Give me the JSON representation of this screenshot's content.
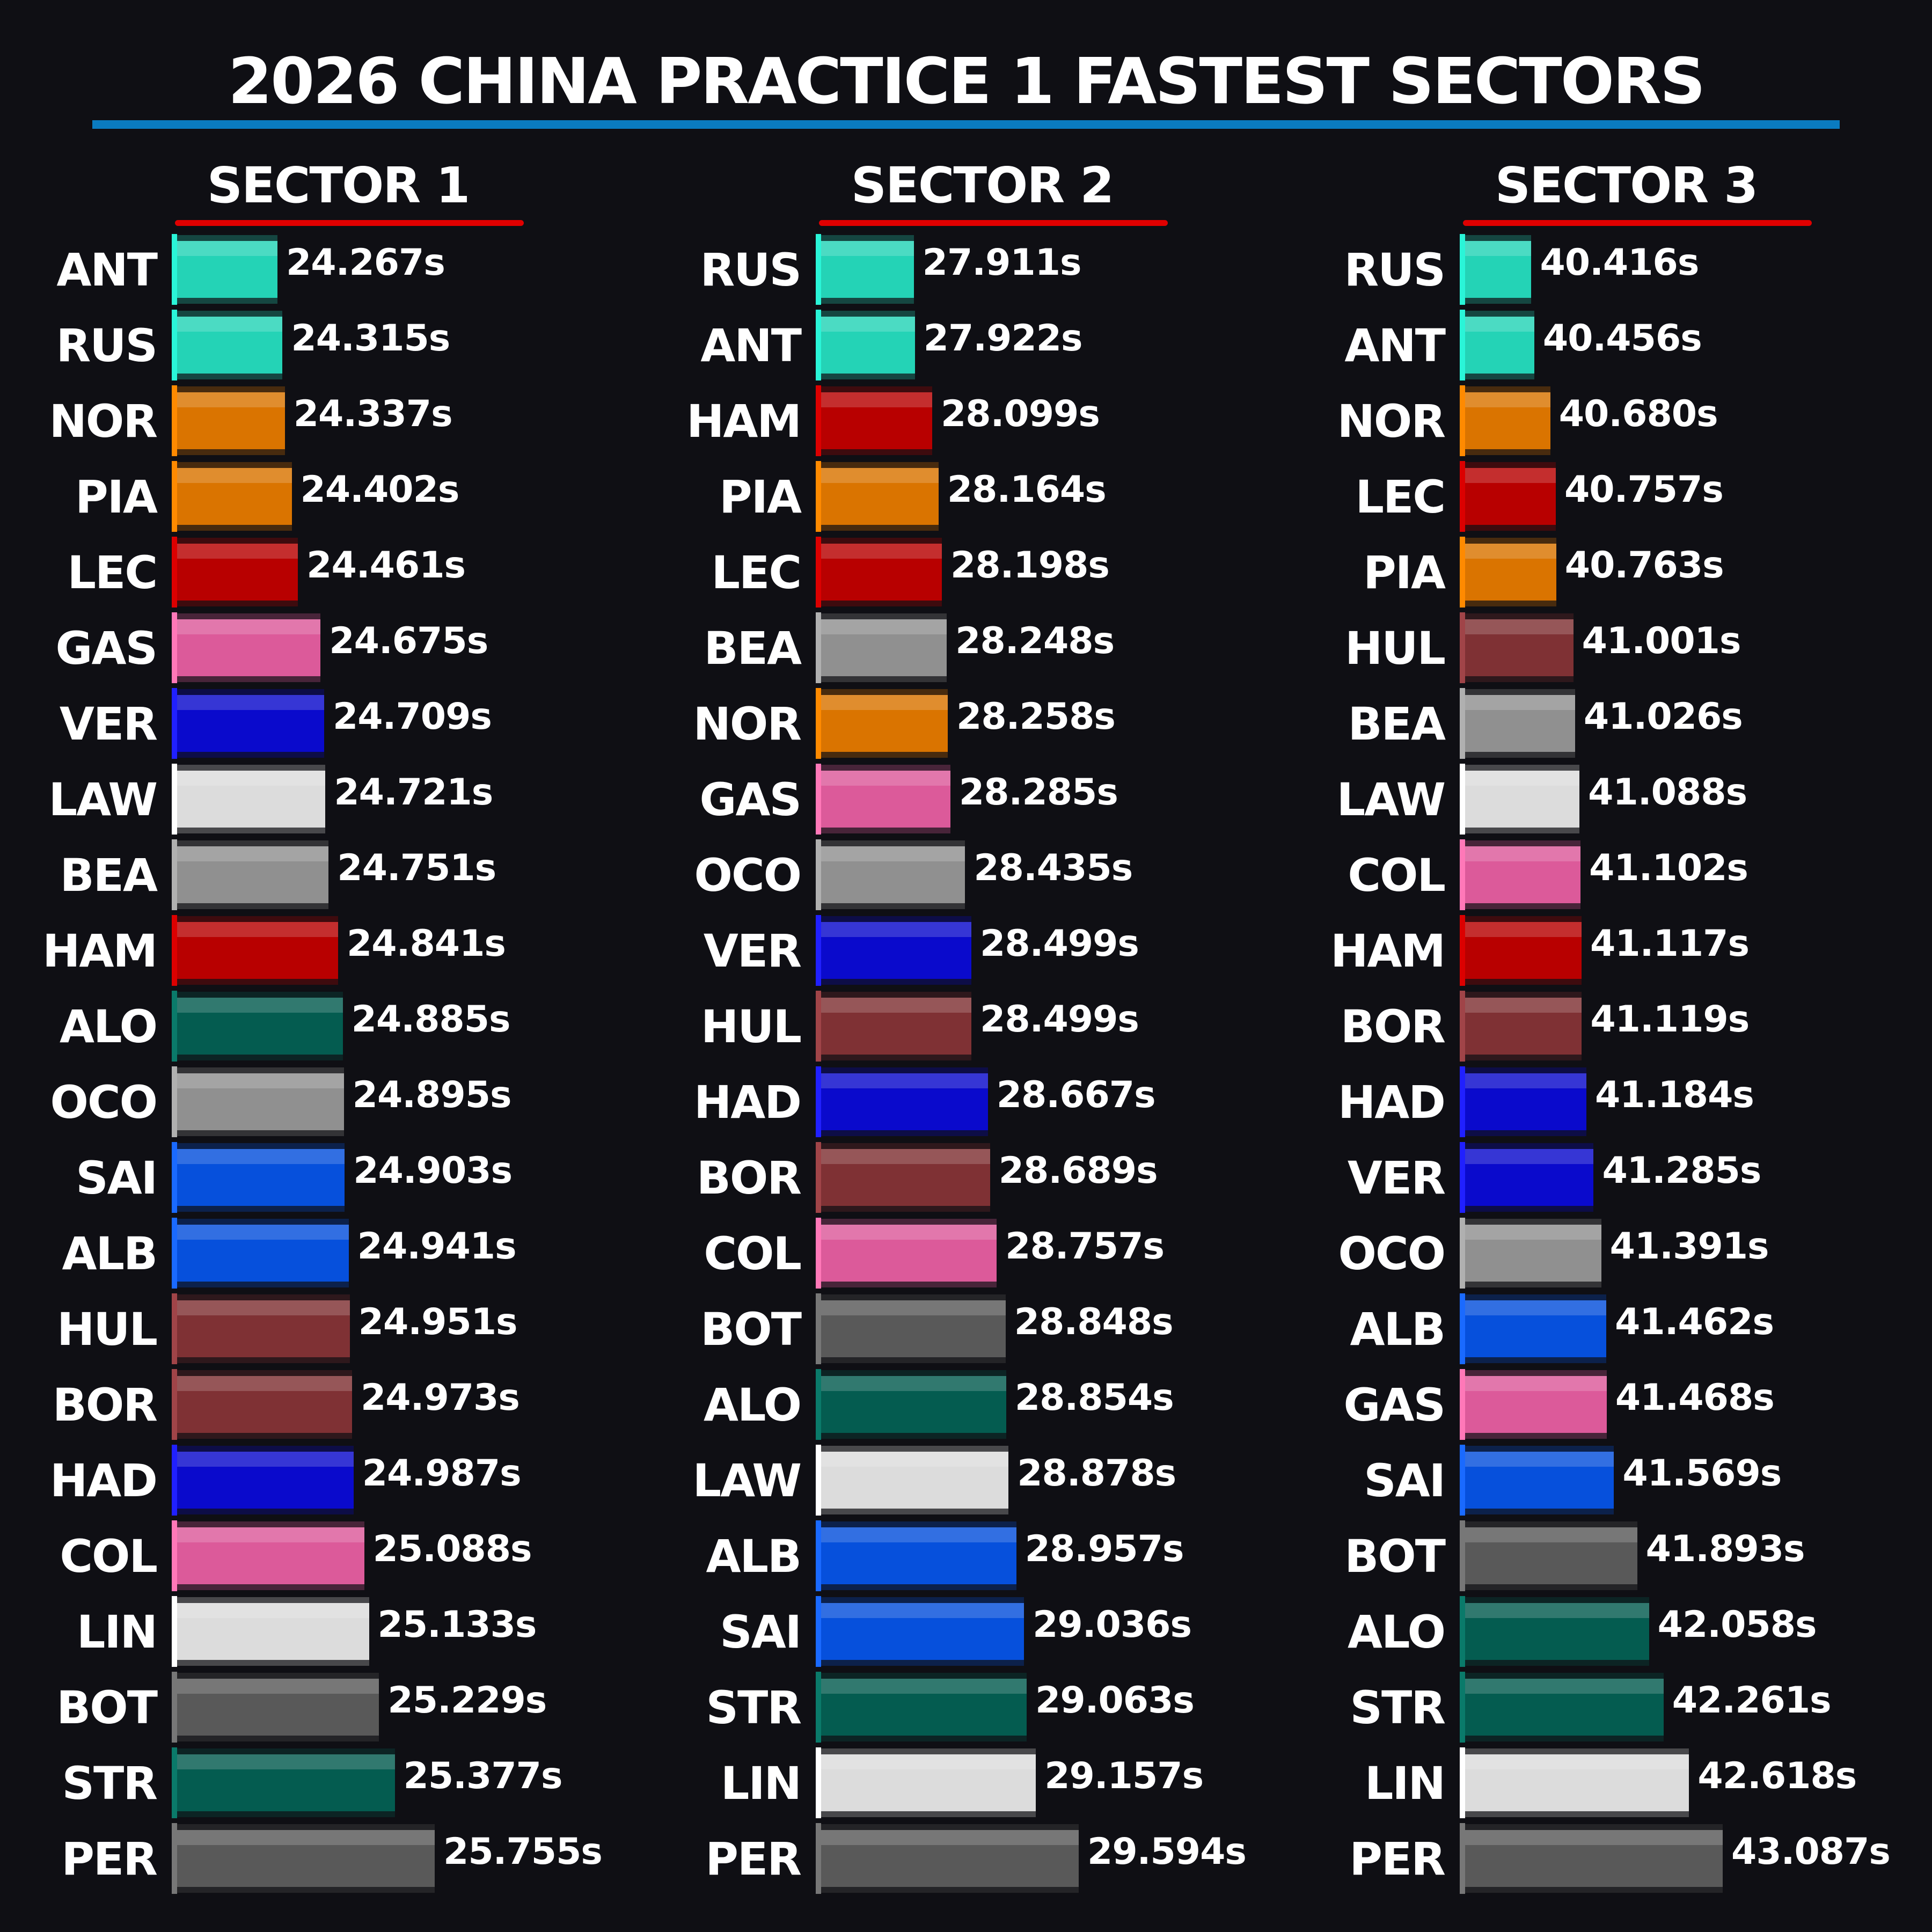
{
  "title": "2026 CHINA PRACTICE 1 FASTEST SECTORS",
  "team_colors": {
    "mercedes": {
      "body": "#24d3b6",
      "accent": "#2af5d8"
    },
    "mclaren": {
      "body": "#da7400",
      "accent": "#ff8a00"
    },
    "ferrari": {
      "body": "#b80000",
      "accent": "#dc0000"
    },
    "alpine": {
      "body": "#dc5a9a",
      "accent": "#ff78b8"
    },
    "redbull": {
      "body": "#0a0acc",
      "accent": "#2020ff"
    },
    "racingbulls": {
      "body": "#dcdcdc",
      "accent": "#ffffff"
    },
    "haas": {
      "body": "#909090",
      "accent": "#b0b0b0"
    },
    "aston": {
      "body": "#045c50",
      "accent": "#0a7a6a"
    },
    "williams": {
      "body": "#0650dc",
      "accent": "#1a6aff"
    },
    "audi": {
      "body": "#7f3134",
      "accent": "#a04448"
    },
    "cadillac": {
      "body": "#595959",
      "accent": "#777777"
    }
  },
  "chart_data": [
    {
      "type": "bar",
      "title": "SECTOR 1",
      "unit": "s",
      "rows": [
        {
          "driver": "ANT",
          "time": "24.267s",
          "value": 24.267,
          "team": "mercedes"
        },
        {
          "driver": "RUS",
          "time": "24.315s",
          "value": 24.315,
          "team": "mercedes"
        },
        {
          "driver": "NOR",
          "time": "24.337s",
          "value": 24.337,
          "team": "mclaren"
        },
        {
          "driver": "PIA",
          "time": "24.402s",
          "value": 24.402,
          "team": "mclaren"
        },
        {
          "driver": "LEC",
          "time": "24.461s",
          "value": 24.461,
          "team": "ferrari"
        },
        {
          "driver": "GAS",
          "time": "24.675s",
          "value": 24.675,
          "team": "alpine"
        },
        {
          "driver": "VER",
          "time": "24.709s",
          "value": 24.709,
          "team": "redbull"
        },
        {
          "driver": "LAW",
          "time": "24.721s",
          "value": 24.721,
          "team": "racingbulls"
        },
        {
          "driver": "BEA",
          "time": "24.751s",
          "value": 24.751,
          "team": "haas"
        },
        {
          "driver": "HAM",
          "time": "24.841s",
          "value": 24.841,
          "team": "ferrari"
        },
        {
          "driver": "ALO",
          "time": "24.885s",
          "value": 24.885,
          "team": "aston"
        },
        {
          "driver": "OCO",
          "time": "24.895s",
          "value": 24.895,
          "team": "haas"
        },
        {
          "driver": "SAI",
          "time": "24.903s",
          "value": 24.903,
          "team": "williams"
        },
        {
          "driver": "ALB",
          "time": "24.941s",
          "value": 24.941,
          "team": "williams"
        },
        {
          "driver": "HUL",
          "time": "24.951s",
          "value": 24.951,
          "team": "audi"
        },
        {
          "driver": "BOR",
          "time": "24.973s",
          "value": 24.973,
          "team": "audi"
        },
        {
          "driver": "HAD",
          "time": "24.987s",
          "value": 24.987,
          "team": "redbull"
        },
        {
          "driver": "COL",
          "time": "25.088s",
          "value": 25.088,
          "team": "alpine"
        },
        {
          "driver": "LIN",
          "time": "25.133s",
          "value": 25.133,
          "team": "racingbulls"
        },
        {
          "driver": "BOT",
          "time": "25.229s",
          "value": 25.229,
          "team": "cadillac"
        },
        {
          "driver": "STR",
          "time": "25.377s",
          "value": 25.377,
          "team": "aston"
        },
        {
          "driver": "PER",
          "time": "25.755s",
          "value": 25.755,
          "team": "cadillac"
        }
      ]
    },
    {
      "type": "bar",
      "title": "SECTOR 2",
      "unit": "s",
      "rows": [
        {
          "driver": "RUS",
          "time": "27.911s",
          "value": 27.911,
          "team": "mercedes"
        },
        {
          "driver": "ANT",
          "time": "27.922s",
          "value": 27.922,
          "team": "mercedes"
        },
        {
          "driver": "HAM",
          "time": "28.099s",
          "value": 28.099,
          "team": "ferrari"
        },
        {
          "driver": "PIA",
          "time": "28.164s",
          "value": 28.164,
          "team": "mclaren"
        },
        {
          "driver": "LEC",
          "time": "28.198s",
          "value": 28.198,
          "team": "ferrari"
        },
        {
          "driver": "BEA",
          "time": "28.248s",
          "value": 28.248,
          "team": "haas"
        },
        {
          "driver": "NOR",
          "time": "28.258s",
          "value": 28.258,
          "team": "mclaren"
        },
        {
          "driver": "GAS",
          "time": "28.285s",
          "value": 28.285,
          "team": "alpine"
        },
        {
          "driver": "OCO",
          "time": "28.435s",
          "value": 28.435,
          "team": "haas"
        },
        {
          "driver": "VER",
          "time": "28.499s",
          "value": 28.499,
          "team": "redbull"
        },
        {
          "driver": "HUL",
          "time": "28.499s",
          "value": 28.499,
          "team": "audi"
        },
        {
          "driver": "HAD",
          "time": "28.667s",
          "value": 28.667,
          "team": "redbull"
        },
        {
          "driver": "BOR",
          "time": "28.689s",
          "value": 28.689,
          "team": "audi"
        },
        {
          "driver": "COL",
          "time": "28.757s",
          "value": 28.757,
          "team": "alpine"
        },
        {
          "driver": "BOT",
          "time": "28.848s",
          "value": 28.848,
          "team": "cadillac"
        },
        {
          "driver": "ALO",
          "time": "28.854s",
          "value": 28.854,
          "team": "aston"
        },
        {
          "driver": "LAW",
          "time": "28.878s",
          "value": 28.878,
          "team": "racingbulls"
        },
        {
          "driver": "ALB",
          "time": "28.957s",
          "value": 28.957,
          "team": "williams"
        },
        {
          "driver": "SAI",
          "time": "29.036s",
          "value": 29.036,
          "team": "williams"
        },
        {
          "driver": "STR",
          "time": "29.063s",
          "value": 29.063,
          "team": "aston"
        },
        {
          "driver": "LIN",
          "time": "29.157s",
          "value": 29.157,
          "team": "racingbulls"
        },
        {
          "driver": "PER",
          "time": "29.594s",
          "value": 29.594,
          "team": "cadillac"
        }
      ]
    },
    {
      "type": "bar",
      "title": "SECTOR 3",
      "unit": "s",
      "rows": [
        {
          "driver": "RUS",
          "time": "40.416s",
          "value": 40.416,
          "team": "mercedes"
        },
        {
          "driver": "ANT",
          "time": "40.456s",
          "value": 40.456,
          "team": "mercedes"
        },
        {
          "driver": "NOR",
          "time": "40.680s",
          "value": 40.68,
          "team": "mclaren"
        },
        {
          "driver": "LEC",
          "time": "40.757s",
          "value": 40.757,
          "team": "ferrari"
        },
        {
          "driver": "PIA",
          "time": "40.763s",
          "value": 40.763,
          "team": "mclaren"
        },
        {
          "driver": "HUL",
          "time": "41.001s",
          "value": 41.001,
          "team": "audi"
        },
        {
          "driver": "BEA",
          "time": "41.026s",
          "value": 41.026,
          "team": "haas"
        },
        {
          "driver": "LAW",
          "time": "41.088s",
          "value": 41.088,
          "team": "racingbulls"
        },
        {
          "driver": "COL",
          "time": "41.102s",
          "value": 41.102,
          "team": "alpine"
        },
        {
          "driver": "HAM",
          "time": "41.117s",
          "value": 41.117,
          "team": "ferrari"
        },
        {
          "driver": "BOR",
          "time": "41.119s",
          "value": 41.119,
          "team": "audi"
        },
        {
          "driver": "HAD",
          "time": "41.184s",
          "value": 41.184,
          "team": "redbull"
        },
        {
          "driver": "VER",
          "time": "41.285s",
          "value": 41.285,
          "team": "redbull"
        },
        {
          "driver": "OCO",
          "time": "41.391s",
          "value": 41.391,
          "team": "haas"
        },
        {
          "driver": "ALB",
          "time": "41.462s",
          "value": 41.462,
          "team": "williams"
        },
        {
          "driver": "GAS",
          "time": "41.468s",
          "value": 41.468,
          "team": "alpine"
        },
        {
          "driver": "SAI",
          "time": "41.569s",
          "value": 41.569,
          "team": "williams"
        },
        {
          "driver": "BOT",
          "time": "41.893s",
          "value": 41.893,
          "team": "cadillac"
        },
        {
          "driver": "ALO",
          "time": "42.058s",
          "value": 42.058,
          "team": "aston"
        },
        {
          "driver": "STR",
          "time": "42.261s",
          "value": 42.261,
          "team": "aston"
        },
        {
          "driver": "LIN",
          "time": "42.618s",
          "value": 42.618,
          "team": "racingbulls"
        },
        {
          "driver": "PER",
          "time": "43.087s",
          "value": 43.087,
          "team": "cadillac"
        }
      ]
    }
  ]
}
